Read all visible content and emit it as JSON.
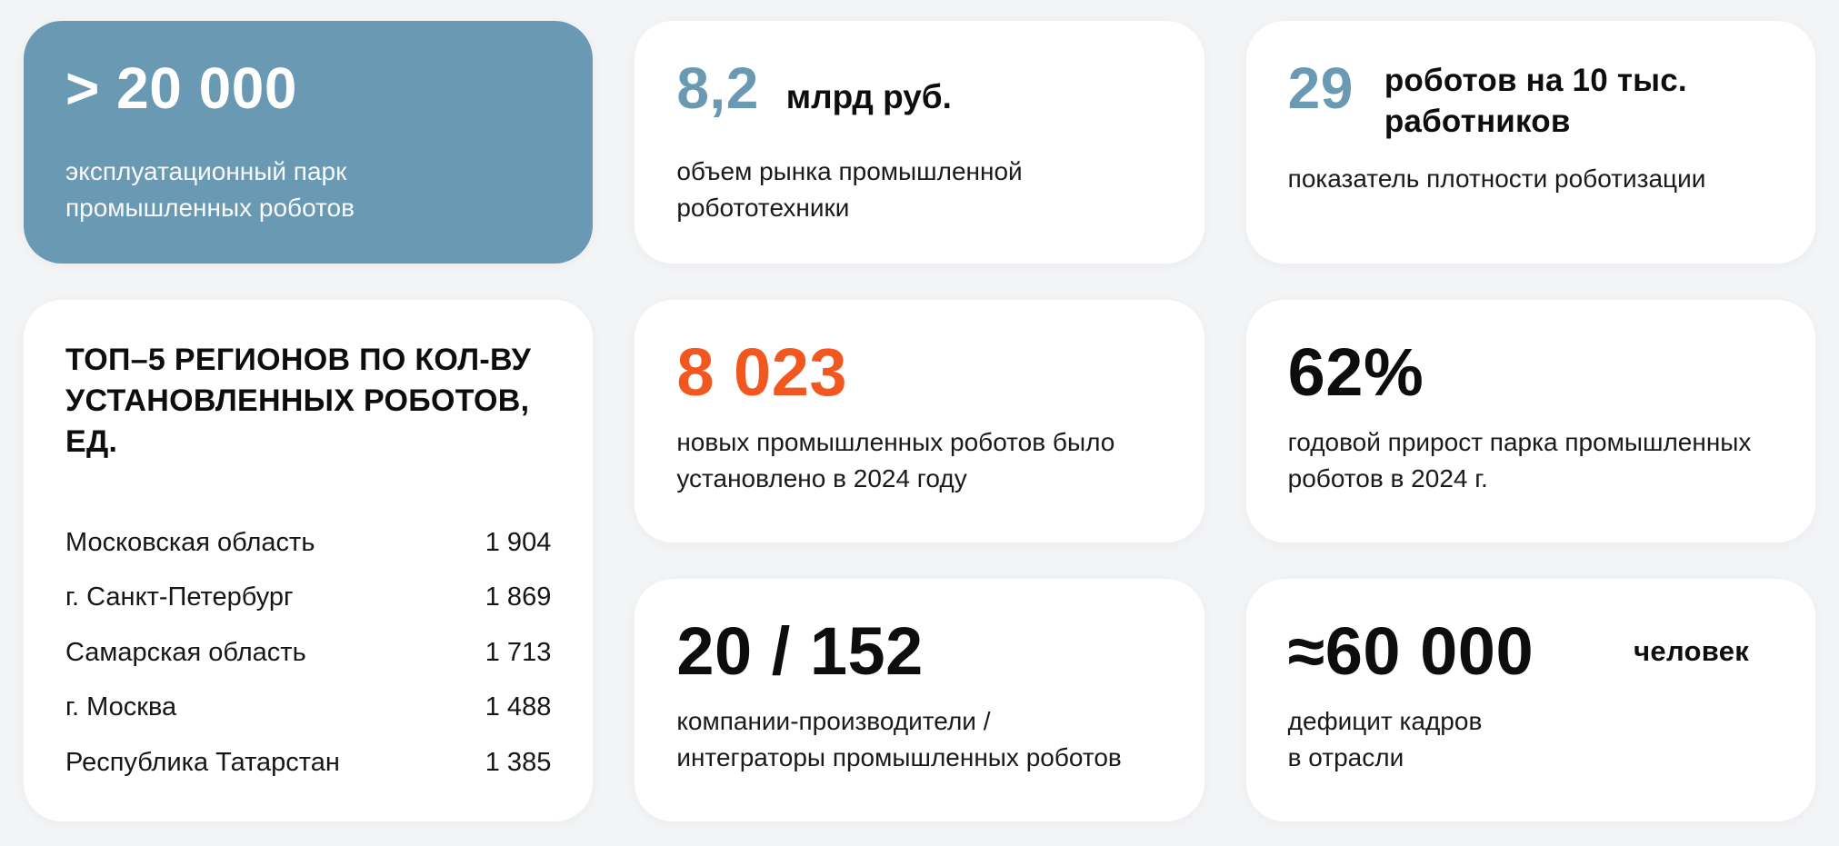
{
  "colors": {
    "page_bg": "#F3F4F5",
    "card_bg": "#FFFFFF",
    "accent_blue": "#6A9AB3",
    "accent_orange": "#F2571F",
    "text_dark": "#0D0D0D"
  },
  "cards": {
    "fleet": {
      "value": "> 20 000",
      "caption": "эксплуатационный парк\nпромышленных роботов"
    },
    "market": {
      "value": "8,2",
      "unit": "млрд руб.",
      "caption": "объем рынка промышленной\nробототехники"
    },
    "density": {
      "value": "29",
      "unit": "роботов на 10 тыс.\nработников",
      "caption": "показатель плотности роботизации"
    },
    "top5": {
      "title": "ТОП–5 РЕГИОНОВ ПО КОЛ-ВУ\nУСТАНОВЛЕННЫХ РОБОТОВ, ЕД.",
      "rows": [
        {
          "region": "Московская область",
          "value": "1 904"
        },
        {
          "region": "г. Санкт-Петербург",
          "value": "1 869"
        },
        {
          "region": "Самарская область",
          "value": "1 713"
        },
        {
          "region": "г. Москва",
          "value": "1 488"
        },
        {
          "region": "Республика Татарстан",
          "value": "1 385"
        }
      ]
    },
    "installed": {
      "value": "8 023",
      "caption": "новых промышленных роботов было\nустановлено в 2024 году"
    },
    "growth": {
      "value": "62%",
      "caption": "годовой прирост парка промышленных\nроботов в 2024 г."
    },
    "companies": {
      "value": "20 / 152",
      "caption": "компании-производители /\nинтеграторы промышленных роботов"
    },
    "deficit": {
      "value": "≈60 000",
      "unit": "человек",
      "caption": "дефицит кадров\nв отрасли"
    }
  },
  "chart_data": [
    {
      "type": "table",
      "title": "ТОП–5 РЕГИОНОВ ПО КОЛ-ВУ УСТАНОВЛЕННЫХ РОБОТОВ, ЕД.",
      "categories": [
        "Московская область",
        "г. Санкт-Петербург",
        "Самарская область",
        "г. Москва",
        "Республика Татарстан"
      ],
      "values": [
        1904,
        1869,
        1713,
        1488,
        1385
      ]
    },
    {
      "type": "table",
      "title": "",
      "kpis": [
        {
          "value": "> 20 000",
          "label": "эксплуатационный парк промышленных роботов"
        },
        {
          "value": 8.2,
          "unit": "млрд руб.",
          "label": "объем рынка промышленной робототехники"
        },
        {
          "value": 29,
          "unit": "роботов на 10 тыс. работников",
          "label": "показатель плотности роботизации"
        },
        {
          "value": 8023,
          "label": "новых промышленных роботов было установлено в 2024 году"
        },
        {
          "value": 62,
          "unit": "%",
          "label": "годовой прирост парка промышленных роботов в 2024 г."
        },
        {
          "value": "20 / 152",
          "label": "компании-производители / интеграторы промышленных роботов"
        },
        {
          "value": "≈60 000",
          "unit": "человек",
          "label": "дефицит кадров в отрасли"
        }
      ]
    }
  ]
}
